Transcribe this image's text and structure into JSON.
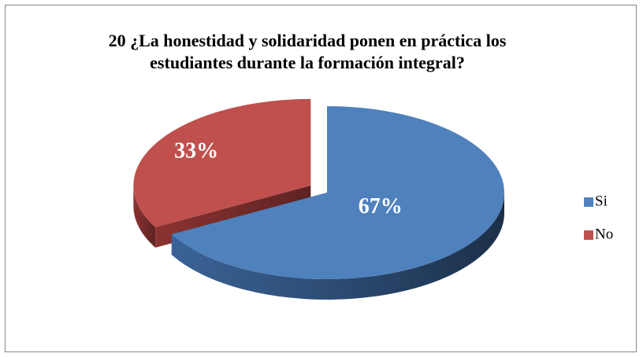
{
  "chart_data": {
    "type": "pie",
    "title": "20 ¿La honestidad y solidaridad ponen en práctica los estudiantes durante la formación integral?",
    "categories": [
      "Si",
      "No"
    ],
    "values": [
      67,
      33
    ],
    "value_labels": [
      "67%",
      "33%"
    ],
    "colors": [
      "#4f81bd",
      "#c0504d"
    ],
    "legend": "right"
  }
}
